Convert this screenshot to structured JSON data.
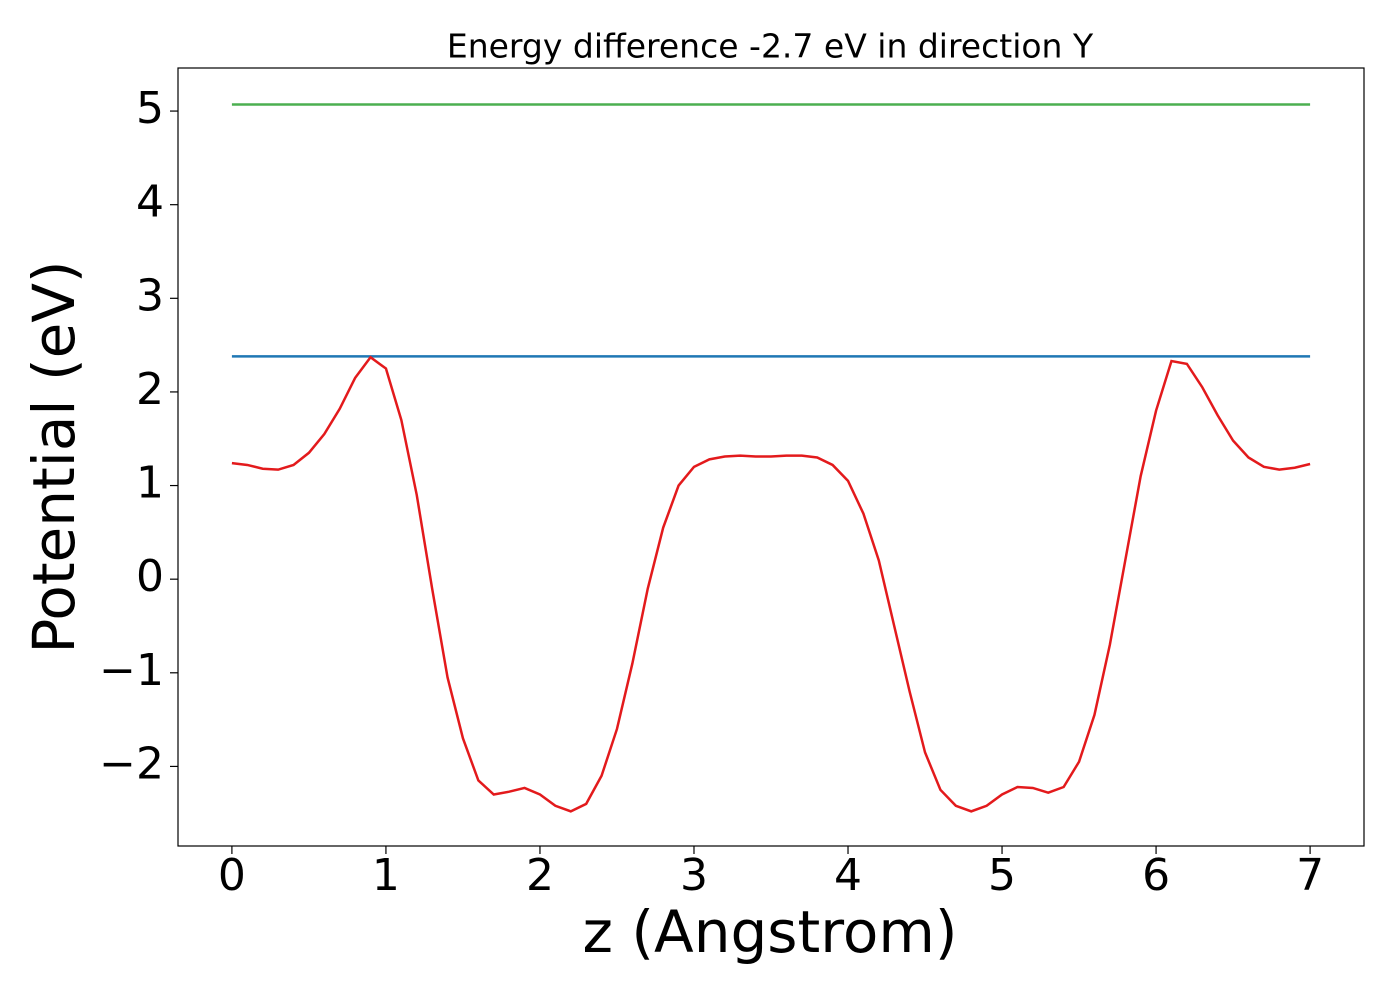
{
  "chart_data": {
    "type": "line",
    "title": "Energy difference -2.7 eV in direction Y",
    "x_label": "z (Angstrom)",
    "y_label": "Potential (eV)",
    "xlim": [
      -0.35,
      7.35
    ],
    "ylim": [
      -2.85,
      5.46
    ],
    "xticks": [
      0,
      1,
      2,
      3,
      4,
      5,
      6,
      7
    ],
    "yticks": [
      {
        "value": -2,
        "label": "−2"
      },
      {
        "value": -1,
        "label": "−1"
      },
      0,
      1,
      2,
      3,
      4,
      5
    ],
    "grid": false,
    "series": [
      {
        "color": "#4caf50",
        "x": [
          0,
          7
        ],
        "values": [
          5.07,
          5.07
        ]
      },
      {
        "color": "#1f77b4",
        "x": [
          0,
          7
        ],
        "values": [
          2.38,
          2.38
        ]
      },
      {
        "color": "#e31a1c",
        "x": [
          0,
          0.1,
          0.2,
          0.3,
          0.4,
          0.5,
          0.6,
          0.7,
          0.8,
          0.9,
          1.0,
          1.1,
          1.2,
          1.3,
          1.4,
          1.5,
          1.6,
          1.7,
          1.8,
          1.9,
          2.0,
          2.1,
          2.2,
          2.3,
          2.4,
          2.5,
          2.6,
          2.7,
          2.8,
          2.9,
          3.0,
          3.1,
          3.2,
          3.3,
          3.4,
          3.5,
          3.6,
          3.7,
          3.8,
          3.9,
          4.0,
          4.1,
          4.2,
          4.3,
          4.4,
          4.5,
          4.6,
          4.7,
          4.8,
          4.9,
          5.0,
          5.1,
          5.2,
          5.3,
          5.4,
          5.5,
          5.6,
          5.7,
          5.8,
          5.9,
          6.0,
          6.1,
          6.2,
          6.3,
          6.4,
          6.5,
          6.6,
          6.7,
          6.8,
          6.9,
          7.0
        ],
        "values": [
          1.24,
          1.22,
          1.18,
          1.17,
          1.22,
          1.35,
          1.55,
          1.82,
          2.15,
          2.37,
          2.25,
          1.7,
          0.9,
          -0.1,
          -1.05,
          -1.7,
          -2.15,
          -2.3,
          -2.27,
          -2.23,
          -2.3,
          -2.42,
          -2.48,
          -2.4,
          -2.1,
          -1.6,
          -0.9,
          -0.1,
          0.55,
          1.0,
          1.2,
          1.28,
          1.31,
          1.32,
          1.31,
          1.31,
          1.32,
          1.32,
          1.3,
          1.22,
          1.05,
          0.7,
          0.2,
          -0.5,
          -1.2,
          -1.85,
          -2.25,
          -2.42,
          -2.48,
          -2.42,
          -2.3,
          -2.22,
          -2.23,
          -2.28,
          -2.22,
          -1.95,
          -1.45,
          -0.7,
          0.2,
          1.1,
          1.8,
          2.33,
          2.3,
          2.05,
          1.75,
          1.48,
          1.3,
          1.2,
          1.17,
          1.19,
          1.23
        ]
      }
    ]
  }
}
